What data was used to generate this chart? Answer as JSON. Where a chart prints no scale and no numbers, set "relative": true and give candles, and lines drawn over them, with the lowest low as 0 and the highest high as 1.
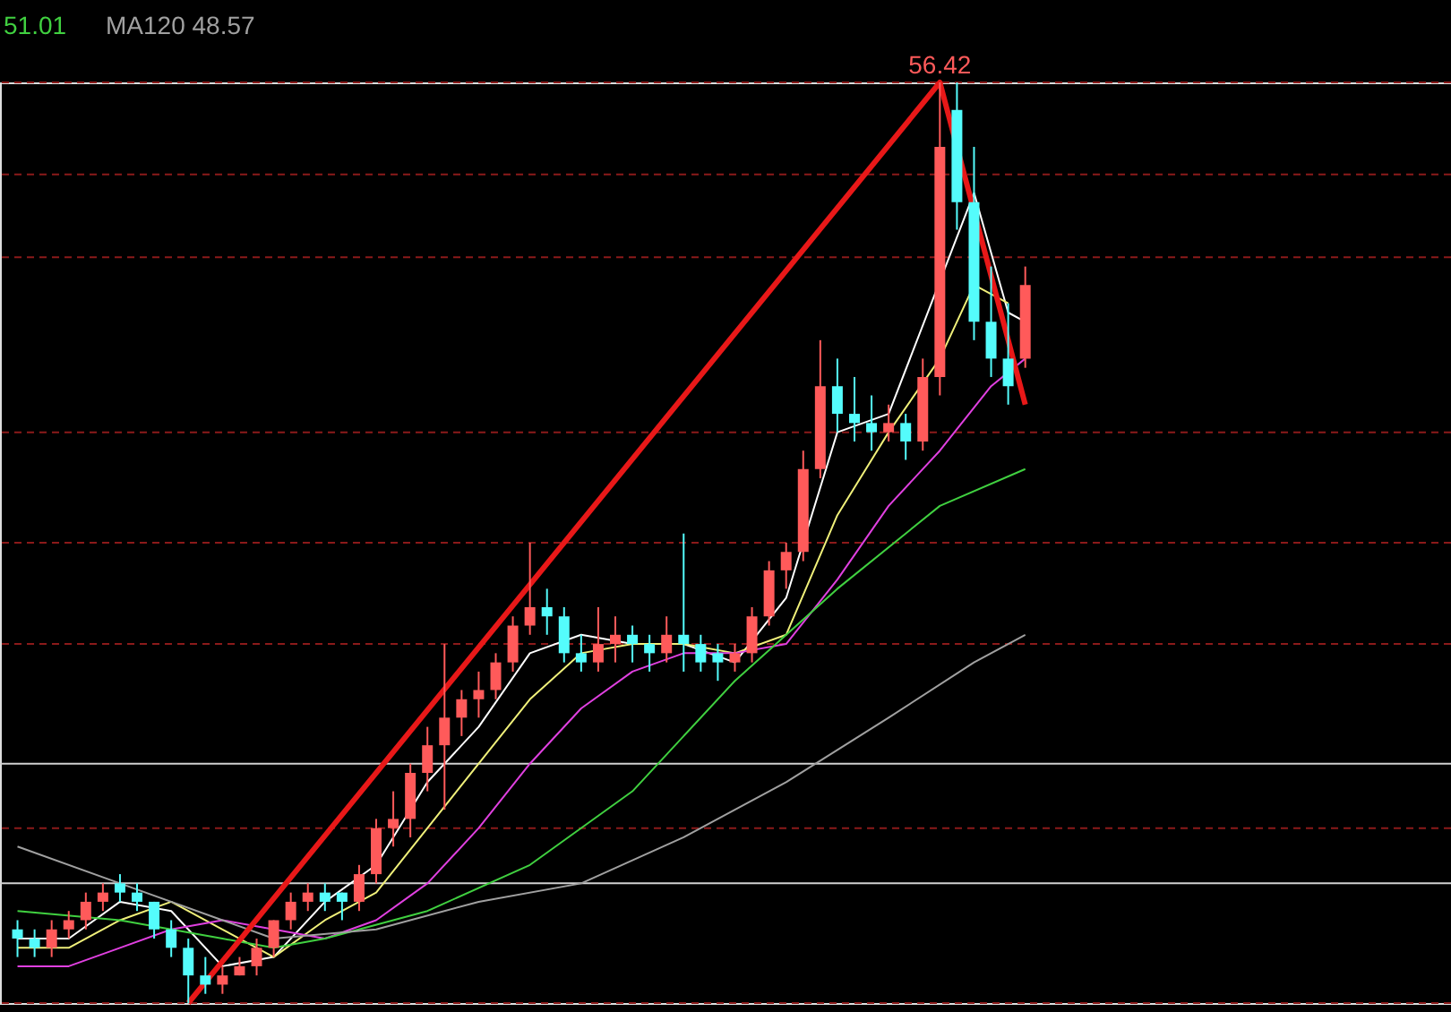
{
  "chart_data": {
    "type": "candlestick",
    "relative": true,
    "legend": "top left",
    "categories": [
      null,
      null,
      null,
      null,
      null,
      null,
      null,
      null,
      null,
      null,
      null,
      null,
      null,
      null,
      null,
      null,
      null,
      null,
      null,
      null,
      null,
      null,
      null,
      null,
      null,
      null,
      null,
      null,
      null,
      null,
      null,
      null,
      null,
      null,
      null,
      null,
      null,
      null,
      null,
      null,
      null,
      null,
      null,
      null,
      null,
      null,
      null,
      null,
      null,
      null,
      null,
      null,
      null,
      null,
      null,
      null,
      null,
      null,
      null,
      null
    ],
    "series": [
      {
        "ohlc": [
          [
            0.08,
            0.09,
            0.05,
            0.07
          ],
          [
            0.07,
            0.08,
            0.05,
            0.06
          ],
          [
            0.06,
            0.09,
            0.05,
            0.08
          ],
          [
            0.08,
            0.1,
            0.07,
            0.09
          ],
          [
            0.09,
            0.12,
            0.08,
            0.11
          ],
          [
            0.11,
            0.13,
            0.1,
            0.12
          ],
          [
            0.13,
            0.14,
            0.11,
            0.12
          ],
          [
            0.12,
            0.13,
            0.1,
            0.11
          ],
          [
            0.11,
            0.11,
            0.07,
            0.08
          ],
          [
            0.08,
            0.09,
            0.05,
            0.06
          ],
          [
            0.06,
            0.07,
            0,
            0.03
          ],
          [
            0.03,
            0.05,
            0.01,
            0.02
          ],
          [
            0.02,
            0.04,
            0.01,
            0.03
          ],
          [
            0.03,
            0.05,
            0.03,
            0.04
          ],
          [
            0.04,
            0.07,
            0.03,
            0.06
          ],
          [
            0.06,
            0.09,
            0.05,
            0.09
          ],
          [
            0.09,
            0.12,
            0.08,
            0.11
          ],
          [
            0.11,
            0.13,
            0.1,
            0.12
          ],
          [
            0.12,
            0.13,
            0.1,
            0.11
          ],
          [
            0.12,
            0.12,
            0.09,
            0.11
          ],
          [
            0.11,
            0.15,
            0.1,
            0.14
          ],
          [
            0.14,
            0.2,
            0.13,
            0.19
          ],
          [
            0.19,
            0.23,
            0.17,
            0.2
          ],
          [
            0.2,
            0.26,
            0.18,
            0.25
          ],
          [
            0.25,
            0.3,
            0.23,
            0.28
          ],
          [
            0.28,
            0.39,
            0.21,
            0.31
          ],
          [
            0.31,
            0.34,
            0.29,
            0.33
          ],
          [
            0.33,
            0.36,
            0.31,
            0.34
          ],
          [
            0.34,
            0.38,
            0.33,
            0.37
          ],
          [
            0.37,
            0.42,
            0.36,
            0.41
          ],
          [
            0.41,
            0.5,
            0.4,
            0.43
          ],
          [
            0.43,
            0.45,
            0.4,
            0.42
          ],
          [
            0.42,
            0.43,
            0.37,
            0.38
          ],
          [
            0.38,
            0.4,
            0.36,
            0.37
          ],
          [
            0.37,
            0.43,
            0.36,
            0.39
          ],
          [
            0.39,
            0.42,
            0.37,
            0.4
          ],
          [
            0.4,
            0.41,
            0.37,
            0.39
          ],
          [
            0.39,
            0.4,
            0.36,
            0.38
          ],
          [
            0.38,
            0.42,
            0.37,
            0.4
          ],
          [
            0.4,
            0.51,
            0.36,
            0.39
          ],
          [
            0.39,
            0.4,
            0.36,
            0.37
          ],
          [
            0.38,
            0.39,
            0.35,
            0.37
          ],
          [
            0.37,
            0.39,
            0.36,
            0.38
          ],
          [
            0.38,
            0.43,
            0.37,
            0.42
          ],
          [
            0.42,
            0.48,
            0.41,
            0.47
          ],
          [
            0.47,
            0.5,
            0.45,
            0.49
          ],
          [
            0.49,
            0.6,
            0.48,
            0.58
          ],
          [
            0.58,
            0.72,
            0.57,
            0.67
          ],
          [
            0.67,
            0.7,
            0.62,
            0.64
          ],
          [
            0.64,
            0.68,
            0.61,
            0.63
          ],
          [
            0.63,
            0.66,
            0.6,
            0.62
          ],
          [
            0.62,
            0.65,
            0.61,
            0.63
          ],
          [
            0.63,
            0.64,
            0.59,
            0.61
          ],
          [
            0.61,
            0.7,
            0.6,
            0.68
          ],
          [
            0.68,
            1,
            0.66,
            0.93
          ],
          [
            0.97,
            1,
            0.84,
            0.87
          ],
          [
            0.87,
            0.93,
            0.72,
            0.74
          ],
          [
            0.74,
            0.8,
            0.68,
            0.7
          ],
          [
            0.7,
            0.76,
            0.65,
            0.67
          ],
          [
            0.7,
            0.8,
            0.69,
            0.78
          ]
        ],
        "colors": [
          "#54fcfc",
          "#54fcfc",
          "#ff5a5a",
          "#ff5a5a",
          "#ff5a5a",
          "#ff5a5a",
          "#54fcfc",
          "#54fcfc",
          "#54fcfc",
          "#54fcfc",
          "#54fcfc",
          "#54fcfc",
          "#ff5a5a",
          "#ff5a5a",
          "#ff5a5a",
          "#ff5a5a",
          "#ff5a5a",
          "#ff5a5a",
          "#54fcfc",
          "#54fcfc",
          "#ff5a5a",
          "#ff5a5a",
          "#ff5a5a",
          "#ff5a5a",
          "#ff5a5a",
          "#ff5a5a",
          "#ff5a5a",
          "#ff5a5a",
          "#ff5a5a",
          "#ff5a5a",
          "#ff5a5a",
          "#54fcfc",
          "#54fcfc",
          "#54fcfc",
          "#ff5a5a",
          "#ff5a5a",
          "#54fcfc",
          "#54fcfc",
          "#ff5a5a",
          "#54fcfc",
          "#54fcfc",
          "#54fcfc",
          "#ff5a5a",
          "#ff5a5a",
          "#ff5a5a",
          "#ff5a5a",
          "#ff5a5a",
          "#ff5a5a",
          "#54fcfc",
          "#54fcfc",
          "#54fcfc",
          "#ff5a5a",
          "#54fcfc",
          "#ff5a5a",
          "#ff5a5a",
          "#54fcfc",
          "#54fcfc",
          "#54fcfc",
          "#54fcfc",
          "#ff5a5a"
        ]
      },
      {
        "type": "line",
        "color": "#ffffff",
        "values": [
          0.07,
          null,
          null,
          0.07,
          null,
          null,
          0.11,
          null,
          null,
          0.1,
          null,
          null,
          0.04,
          null,
          null,
          0.05,
          null,
          null,
          0.11,
          null,
          null,
          0.15,
          null,
          null,
          0.24,
          null,
          null,
          0.3,
          null,
          null,
          0.38,
          null,
          null,
          0.4,
          null,
          null,
          0.39,
          null,
          null,
          0.39,
          null,
          null,
          0.37,
          null,
          null,
          0.44,
          null,
          null,
          0.62,
          null,
          null,
          0.64,
          null,
          null,
          null,
          null,
          0.88,
          null,
          0.75,
          0.74
        ]
      },
      {
        "type": "line",
        "color": "#f0f07a",
        "values": [
          0.06,
          null,
          null,
          0.06,
          null,
          null,
          0.09,
          null,
          null,
          0.11,
          null,
          null,
          0.08,
          null,
          null,
          0.05,
          null,
          null,
          0.09,
          null,
          null,
          0.12,
          null,
          null,
          0.19,
          null,
          null,
          0.26,
          null,
          null,
          0.33,
          null,
          null,
          0.38,
          null,
          null,
          0.39,
          null,
          null,
          0.39,
          null,
          null,
          0.38,
          null,
          null,
          0.4,
          null,
          null,
          0.53,
          null,
          null,
          0.62,
          null,
          null,
          0.7,
          null,
          0.78,
          null,
          0.76,
          null
        ]
      },
      {
        "type": "line",
        "color": "#e040e0",
        "values": [
          0.04,
          null,
          null,
          0.04,
          null,
          null,
          0.06,
          null,
          null,
          0.08,
          null,
          null,
          0.09,
          null,
          null,
          0.08,
          null,
          null,
          0.07,
          null,
          null,
          0.09,
          null,
          null,
          0.13,
          null,
          null,
          0.19,
          null,
          null,
          0.26,
          null,
          null,
          0.32,
          null,
          null,
          0.36,
          null,
          null,
          0.38,
          null,
          null,
          0.38,
          null,
          null,
          0.39,
          null,
          null,
          0.46,
          null,
          null,
          0.54,
          null,
          null,
          0.6,
          null,
          null,
          0.67,
          null,
          0.7
        ]
      },
      {
        "type": "line",
        "name": "51.01",
        "color": "#40d040",
        "values": [
          0.1,
          null,
          null,
          null,
          null,
          null,
          0.09,
          null,
          null,
          null,
          null,
          null,
          0.07,
          null,
          null,
          0.06,
          null,
          null,
          0.07,
          null,
          null,
          null,
          null,
          null,
          0.1,
          null,
          null,
          null,
          null,
          null,
          0.15,
          null,
          null,
          null,
          null,
          null,
          0.23,
          null,
          null,
          null,
          null,
          null,
          0.35,
          null,
          null,
          null,
          null,
          null,
          0.45,
          null,
          null,
          null,
          null,
          null,
          0.54,
          null,
          null,
          null,
          null,
          0.58
        ]
      },
      {
        "type": "line",
        "name": "MA120 48.57",
        "color": "#a0a0a0",
        "values": [
          0.17,
          null,
          null,
          null,
          null,
          null,
          0.13,
          null,
          null,
          null,
          null,
          null,
          0.09,
          null,
          null,
          0.07,
          null,
          null,
          null,
          null,
          null,
          0.08,
          null,
          null,
          null,
          null,
          null,
          0.11,
          null,
          null,
          null,
          null,
          null,
          0.13,
          null,
          null,
          null,
          null,
          null,
          0.18,
          null,
          null,
          null,
          null,
          null,
          0.24,
          null,
          null,
          null,
          null,
          null,
          0.31,
          null,
          null,
          null,
          null,
          0.37,
          null,
          null,
          0.4
        ]
      },
      {
        "type": "line",
        "color": "#e81818",
        "values": [
          null,
          null,
          null,
          null,
          null,
          null,
          null,
          null,
          null,
          null,
          0,
          null,
          null,
          null,
          null,
          null,
          null,
          null,
          null,
          null,
          null,
          null,
          null,
          null,
          null,
          null,
          null,
          null,
          null,
          null,
          null,
          null,
          null,
          null,
          null,
          null,
          null,
          null,
          null,
          null,
          null,
          null,
          null,
          null,
          null,
          null,
          null,
          null,
          null,
          null,
          null,
          null,
          null,
          null,
          1,
          null,
          null,
          null,
          null,
          0.65
        ]
      }
    ],
    "ref_lines": [
      {
        "axis": "y",
        "value": 1,
        "color": "#8b1a1a",
        "line_style": "dashed"
      },
      {
        "axis": "y",
        "value": 0.9,
        "color": "#8b1a1a",
        "line_style": "dashed"
      },
      {
        "axis": "y",
        "value": 0.81,
        "color": "#8b1a1a",
        "line_style": "dashed"
      },
      {
        "axis": "y",
        "value": 0.62,
        "color": "#8b1a1a",
        "line_style": "dashed"
      },
      {
        "axis": "y",
        "value": 0.5,
        "color": "#8b1a1a",
        "line_style": "dashed"
      },
      {
        "axis": "y",
        "value": 0.39,
        "color": "#8b1a1a",
        "line_style": "dashed"
      },
      {
        "axis": "y",
        "value": 0.19,
        "color": "#8b1a1a",
        "line_style": "dashed"
      },
      {
        "axis": "y",
        "value": 0,
        "color": "#8b1a1a",
        "line_style": "dashed"
      },
      {
        "axis": "y",
        "value": 0.26,
        "color": "#d0d0d0",
        "line_style": "solid"
      },
      {
        "axis": "y",
        "value": 0.13,
        "color": "#d0d0d0",
        "line_style": "solid"
      }
    ],
    "annotations": [
      {
        "text": "56.42",
        "y": 1
      }
    ]
  }
}
